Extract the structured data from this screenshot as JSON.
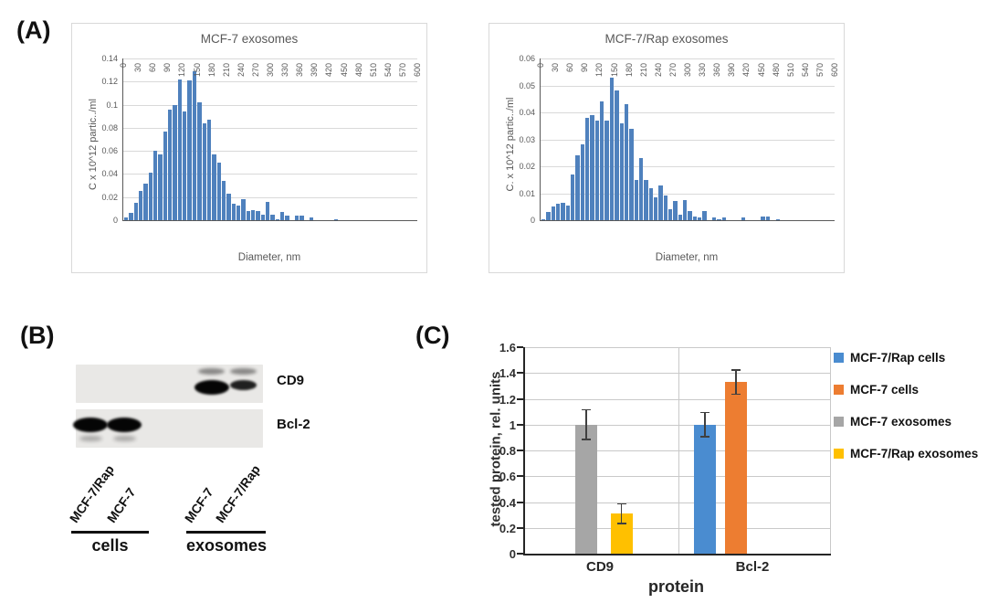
{
  "panel_a": {
    "label": "(A)"
  },
  "panel_b": {
    "label": "(B)",
    "rows": [
      {
        "protein": "CD9",
        "bands": [
          {
            "lane": 2,
            "strength": "strong",
            "upper_faint": true
          },
          {
            "lane": 3,
            "strength": "medium",
            "upper_faint": true
          }
        ]
      },
      {
        "protein": "Bcl-2",
        "bands": [
          {
            "lane": 0,
            "strength": "strong",
            "lower_smear": true
          },
          {
            "lane": 1,
            "strength": "strong",
            "lower_smear": true
          }
        ]
      }
    ],
    "lanes": [
      "MCF-7/Rap",
      "MCF-7",
      "MCF-7",
      "MCF-7/Rap"
    ],
    "groups": [
      {
        "label": "cells"
      },
      {
        "label": "exosomes"
      }
    ]
  },
  "panel_c": {
    "label": "(C)"
  },
  "chart_data": [
    {
      "type": "bar",
      "role": "size-histogram",
      "title": "MCF-7 exosomes",
      "xlabel": "Diameter, nm",
      "ylabel": "C x 10^12 partic../ml",
      "ylim": [
        0,
        0.14
      ],
      "yticks": [
        0,
        0.02,
        0.04,
        0.06,
        0.08,
        0.1,
        0.12,
        0.14
      ],
      "xticks": [
        0,
        30,
        60,
        90,
        120,
        150,
        180,
        210,
        240,
        270,
        300,
        330,
        360,
        390,
        420,
        450,
        480,
        510,
        540,
        570,
        600
      ],
      "bin_start_nm": 10,
      "bin_width_nm": 10,
      "bar_color": "#4f81bd",
      "grid": true,
      "values": [
        0.002,
        0.006,
        0.015,
        0.025,
        0.032,
        0.041,
        0.06,
        0.057,
        0.077,
        0.096,
        0.1,
        0.122,
        0.094,
        0.121,
        0.129,
        0.102,
        0.084,
        0.087,
        0.057,
        0.05,
        0.034,
        0.023,
        0.014,
        0.013,
        0.018,
        0.008,
        0.009,
        0.008,
        0.005,
        0.016,
        0.005,
        0.001,
        0.007,
        0.004,
        0,
        0.004,
        0.004,
        0,
        0.002,
        0,
        0,
        0,
        0,
        0.001,
        0,
        0,
        0,
        0,
        0,
        0,
        0,
        0,
        0,
        0,
        0,
        0,
        0,
        0,
        0,
        0
      ]
    },
    {
      "type": "bar",
      "role": "size-histogram",
      "title": "MCF-7/Rap exosomes",
      "xlabel": "Diameter, nm",
      "ylabel": "C. x 10^12 partic../ml",
      "ylim": [
        0,
        0.06
      ],
      "yticks": [
        0,
        0.01,
        0.02,
        0.03,
        0.04,
        0.05,
        0.06
      ],
      "xticks": [
        0,
        30,
        60,
        90,
        120,
        150,
        180,
        210,
        240,
        270,
        300,
        330,
        360,
        390,
        420,
        450,
        480,
        510,
        540,
        570,
        600
      ],
      "bin_start_nm": 10,
      "bin_width_nm": 10,
      "bar_color": "#4f81bd",
      "grid": true,
      "values": [
        0.0005,
        0.003,
        0.005,
        0.006,
        0.0065,
        0.0055,
        0.017,
        0.024,
        0.028,
        0.038,
        0.039,
        0.037,
        0.044,
        0.037,
        0.053,
        0.048,
        0.036,
        0.043,
        0.034,
        0.015,
        0.023,
        0.015,
        0.012,
        0.0085,
        0.013,
        0.009,
        0.004,
        0.007,
        0.002,
        0.0075,
        0.0035,
        0.0015,
        0.001,
        0.0035,
        0,
        0.001,
        0.0005,
        0.001,
        0,
        0,
        0,
        0.001,
        0,
        0,
        0,
        0.0012,
        0.0012,
        0,
        0.0005,
        0,
        0,
        0,
        0,
        0,
        0,
        0,
        0,
        0,
        0,
        0
      ]
    },
    {
      "type": "bar",
      "role": "grouped-bar",
      "title": "",
      "xlabel": "protein",
      "ylabel": "tested protein, rel. units",
      "ylim": [
        0,
        1.6
      ],
      "yticks": [
        0,
        0.2,
        0.4,
        0.6,
        0.8,
        1,
        1.2,
        1.4,
        1.6
      ],
      "categories": [
        "CD9",
        "Bcl-2"
      ],
      "grid": true,
      "legend_position": "right",
      "series": [
        {
          "name": "MCF-7/Rap cells",
          "color": "#4a8cd0",
          "values": [
            null,
            1.0
          ],
          "errors": [
            null,
            0.1
          ]
        },
        {
          "name": "MCF-7 cells",
          "color": "#ed7d31",
          "values": [
            null,
            1.33
          ],
          "errors": [
            null,
            0.1
          ]
        },
        {
          "name": "MCF-7 exosomes",
          "color": "#a6a6a6",
          "values": [
            1.0,
            null
          ],
          "errors": [
            0.12,
            null
          ]
        },
        {
          "name": "MCF-7/Rap exosomes",
          "color": "#ffc000",
          "values": [
            0.31,
            null
          ],
          "errors": [
            0.08,
            null
          ]
        }
      ]
    }
  ]
}
